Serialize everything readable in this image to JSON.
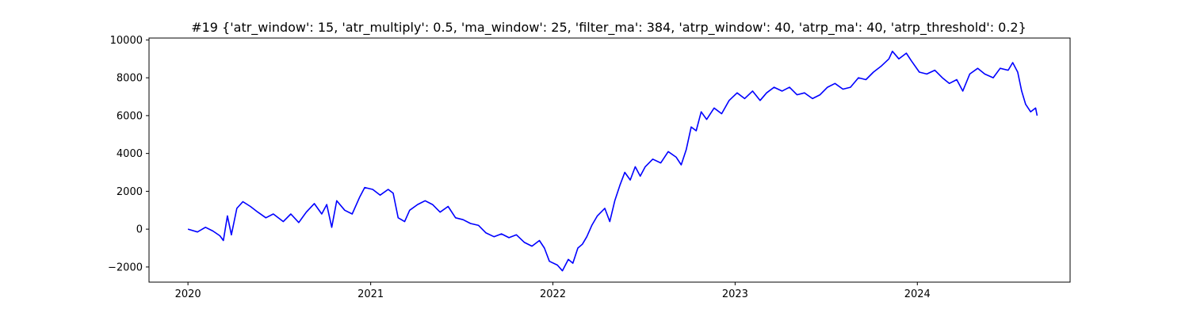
{
  "chart_data": {
    "type": "line",
    "title": "#19 {'atr_window': 15, 'atr_multiply': 0.5, 'ma_window': 25, 'filter_ma': 384, 'atrp_window': 40, 'atrp_ma': 40, 'atrp_threshold': 0.2}",
    "xlabel": "",
    "ylabel": "",
    "xlim": [
      "2019-10-15",
      "2024-11-02"
    ],
    "ylim": [
      -2800,
      10100
    ],
    "x_ticks": [
      "2020-01-01",
      "2021-01-01",
      "2022-01-01",
      "2023-01-01",
      "2024-01-01"
    ],
    "x_tick_labels": [
      "2020",
      "2021",
      "2022",
      "2023",
      "2024"
    ],
    "y_ticks": [
      -2000,
      0,
      2000,
      4000,
      6000,
      8000,
      10000
    ],
    "y_tick_labels": [
      "−2000",
      "0",
      "2000",
      "4000",
      "6000",
      "8000",
      "10000"
    ],
    "grid": false,
    "series": [
      {
        "color": "#0000ff",
        "points": [
          [
            "2020-01-01",
            0
          ],
          [
            "2020-01-20",
            -150
          ],
          [
            "2020-02-05",
            100
          ],
          [
            "2020-02-20",
            -100
          ],
          [
            "2020-03-05",
            -350
          ],
          [
            "2020-03-12",
            -600
          ],
          [
            "2020-03-20",
            700
          ],
          [
            "2020-03-28",
            -300
          ],
          [
            "2020-04-08",
            1100
          ],
          [
            "2020-04-20",
            1450
          ],
          [
            "2020-05-05",
            1200
          ],
          [
            "2020-05-20",
            900
          ],
          [
            "2020-06-05",
            600
          ],
          [
            "2020-06-20",
            800
          ],
          [
            "2020-07-10",
            400
          ],
          [
            "2020-07-25",
            800
          ],
          [
            "2020-08-10",
            350
          ],
          [
            "2020-08-25",
            900
          ],
          [
            "2020-09-10",
            1350
          ],
          [
            "2020-09-25",
            800
          ],
          [
            "2020-10-05",
            1300
          ],
          [
            "2020-10-15",
            100
          ],
          [
            "2020-10-25",
            1500
          ],
          [
            "2020-11-10",
            1000
          ],
          [
            "2020-11-25",
            800
          ],
          [
            "2020-12-10",
            1700
          ],
          [
            "2020-12-20",
            2200
          ],
          [
            "2021-01-05",
            2100
          ],
          [
            "2021-01-20",
            1800
          ],
          [
            "2021-02-05",
            2100
          ],
          [
            "2021-02-15",
            1900
          ],
          [
            "2021-02-25",
            600
          ],
          [
            "2021-03-10",
            400
          ],
          [
            "2021-03-20",
            1000
          ],
          [
            "2021-04-05",
            1300
          ],
          [
            "2021-04-20",
            1500
          ],
          [
            "2021-05-05",
            1300
          ],
          [
            "2021-05-20",
            900
          ],
          [
            "2021-06-05",
            1200
          ],
          [
            "2021-06-20",
            600
          ],
          [
            "2021-07-05",
            500
          ],
          [
            "2021-07-20",
            300
          ],
          [
            "2021-08-05",
            200
          ],
          [
            "2021-08-20",
            -200
          ],
          [
            "2021-09-05",
            -400
          ],
          [
            "2021-09-20",
            -250
          ],
          [
            "2021-10-05",
            -450
          ],
          [
            "2021-10-20",
            -300
          ],
          [
            "2021-11-05",
            -700
          ],
          [
            "2021-11-20",
            -900
          ],
          [
            "2021-12-05",
            -600
          ],
          [
            "2021-12-15",
            -1000
          ],
          [
            "2021-12-25",
            -1700
          ],
          [
            "2022-01-10",
            -1900
          ],
          [
            "2022-01-20",
            -2200
          ],
          [
            "2022-02-01",
            -1600
          ],
          [
            "2022-02-10",
            -1800
          ],
          [
            "2022-02-20",
            -1000
          ],
          [
            "2022-03-01",
            -800
          ],
          [
            "2022-03-10",
            -400
          ],
          [
            "2022-03-20",
            200
          ],
          [
            "2022-03-31",
            700
          ],
          [
            "2022-04-15",
            1100
          ],
          [
            "2022-04-25",
            400
          ],
          [
            "2022-05-05",
            1500
          ],
          [
            "2022-05-15",
            2300
          ],
          [
            "2022-05-25",
            3000
          ],
          [
            "2022-06-05",
            2600
          ],
          [
            "2022-06-15",
            3300
          ],
          [
            "2022-06-25",
            2800
          ],
          [
            "2022-07-05",
            3300
          ],
          [
            "2022-07-20",
            3700
          ],
          [
            "2022-08-05",
            3500
          ],
          [
            "2022-08-20",
            4100
          ],
          [
            "2022-09-05",
            3800
          ],
          [
            "2022-09-15",
            3400
          ],
          [
            "2022-09-25",
            4200
          ],
          [
            "2022-10-05",
            5400
          ],
          [
            "2022-10-15",
            5200
          ],
          [
            "2022-10-25",
            6200
          ],
          [
            "2022-11-05",
            5800
          ],
          [
            "2022-11-20",
            6400
          ],
          [
            "2022-12-05",
            6100
          ],
          [
            "2022-12-20",
            6800
          ],
          [
            "2023-01-05",
            7200
          ],
          [
            "2023-01-20",
            6900
          ],
          [
            "2023-02-05",
            7300
          ],
          [
            "2023-02-20",
            6800
          ],
          [
            "2023-03-05",
            7200
          ],
          [
            "2023-03-20",
            7500
          ],
          [
            "2023-04-05",
            7300
          ],
          [
            "2023-04-20",
            7500
          ],
          [
            "2023-05-05",
            7100
          ],
          [
            "2023-05-20",
            7200
          ],
          [
            "2023-06-05",
            6900
          ],
          [
            "2023-06-20",
            7100
          ],
          [
            "2023-07-05",
            7500
          ],
          [
            "2023-07-20",
            7700
          ],
          [
            "2023-08-05",
            7400
          ],
          [
            "2023-08-20",
            7500
          ],
          [
            "2023-09-05",
            8000
          ],
          [
            "2023-09-20",
            7900
          ],
          [
            "2023-10-05",
            8300
          ],
          [
            "2023-10-20",
            8600
          ],
          [
            "2023-11-05",
            9000
          ],
          [
            "2023-11-12",
            9400
          ],
          [
            "2023-11-25",
            9000
          ],
          [
            "2023-12-10",
            9300
          ],
          [
            "2023-12-20",
            8900
          ],
          [
            "2024-01-05",
            8300
          ],
          [
            "2024-01-20",
            8200
          ],
          [
            "2024-02-05",
            8400
          ],
          [
            "2024-02-20",
            8000
          ],
          [
            "2024-03-05",
            7700
          ],
          [
            "2024-03-20",
            7900
          ],
          [
            "2024-04-01",
            7300
          ],
          [
            "2024-04-15",
            8200
          ],
          [
            "2024-05-01",
            8500
          ],
          [
            "2024-05-15",
            8200
          ],
          [
            "2024-06-01",
            8000
          ],
          [
            "2024-06-15",
            8500
          ],
          [
            "2024-07-01",
            8400
          ],
          [
            "2024-07-10",
            8800
          ],
          [
            "2024-07-20",
            8300
          ],
          [
            "2024-07-28",
            7300
          ],
          [
            "2024-08-05",
            6600
          ],
          [
            "2024-08-15",
            6200
          ],
          [
            "2024-08-25",
            6400
          ],
          [
            "2024-08-28",
            6000
          ]
        ]
      }
    ]
  }
}
